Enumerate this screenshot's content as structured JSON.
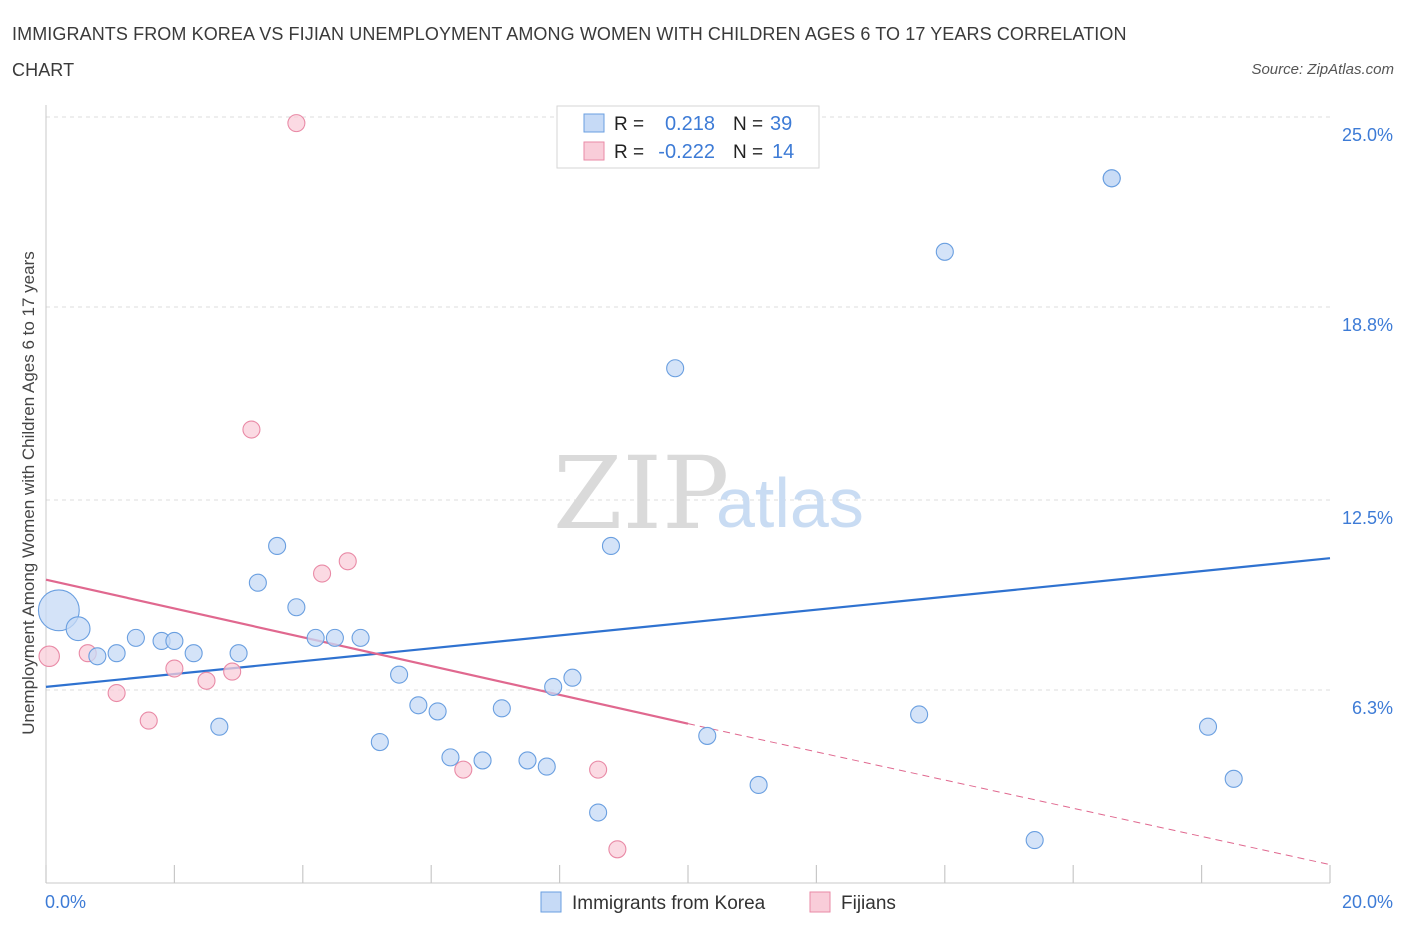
{
  "title": "IMMIGRANTS FROM KOREA VS FIJIAN UNEMPLOYMENT AMONG WOMEN WITH CHILDREN AGES 6 TO 17 YEARS CORRELATION CHART",
  "source": "Source: ZipAtlas.com",
  "watermark": {
    "zip": "ZIP",
    "atlas": "atlas"
  },
  "legend_box": [
    {
      "r_label": "R =",
      "r_value": "0.218",
      "n_label": "N =",
      "n_value": "39",
      "fill": "#c6daf6",
      "stroke": "#6a9fe0"
    },
    {
      "r_label": "R =",
      "r_value": "-0.222",
      "n_label": "N =",
      "n_value": "14",
      "fill": "#f9cdd9",
      "stroke": "#e98aa6"
    }
  ],
  "bottom_legend": [
    {
      "label": "Immigrants from Korea",
      "fill": "#c6daf6",
      "stroke": "#6a9fe0"
    },
    {
      "label": "Fijians",
      "fill": "#f9cdd9",
      "stroke": "#e98aa6"
    }
  ],
  "chart_data": {
    "type": "scatter",
    "title": "IMMIGRANTS FROM KOREA VS FIJIAN UNEMPLOYMENT AMONG WOMEN WITH CHILDREN AGES 6 TO 17 YEARS CORRELATION CHART",
    "xlabel": "",
    "ylabel": "Unemployment Among Women with Children Ages 6 to 17 years",
    "xlim": [
      0,
      20
    ],
    "ylim": [
      0,
      25
    ],
    "x_tick_labels": [
      "0.0%",
      "20.0%"
    ],
    "y_ticks": [
      6.3,
      12.5,
      18.8,
      25.0
    ],
    "y_tick_labels": [
      "6.3%",
      "12.5%",
      "18.8%",
      "25.0%"
    ],
    "grid": true,
    "legend_position": "top-center",
    "series": [
      {
        "name": "Immigrants from Korea",
        "color": "#6a9fe0",
        "fill": "#c6daf6",
        "trend": {
          "x": [
            0,
            20
          ],
          "y": [
            6.4,
            10.6
          ],
          "style": "solid",
          "color": "#2f72d0"
        },
        "points": [
          {
            "x": 0.2,
            "y": 8.9,
            "s": 2.4
          },
          {
            "x": 0.5,
            "y": 8.3,
            "s": 1.4
          },
          {
            "x": 0.8,
            "y": 7.4,
            "s": 1
          },
          {
            "x": 1.1,
            "y": 7.5,
            "s": 1
          },
          {
            "x": 1.4,
            "y": 8.0,
            "s": 1
          },
          {
            "x": 1.8,
            "y": 7.9,
            "s": 1
          },
          {
            "x": 2.0,
            "y": 7.9,
            "s": 1
          },
          {
            "x": 2.3,
            "y": 7.5,
            "s": 1
          },
          {
            "x": 2.7,
            "y": 5.1,
            "s": 1
          },
          {
            "x": 3.0,
            "y": 7.5,
            "s": 1
          },
          {
            "x": 3.3,
            "y": 9.8,
            "s": 1
          },
          {
            "x": 3.6,
            "y": 11.0,
            "s": 1
          },
          {
            "x": 3.9,
            "y": 9.0,
            "s": 1
          },
          {
            "x": 4.2,
            "y": 8.0,
            "s": 1
          },
          {
            "x": 4.5,
            "y": 8.0,
            "s": 1
          },
          {
            "x": 4.9,
            "y": 8.0,
            "s": 1
          },
          {
            "x": 5.2,
            "y": 4.6,
            "s": 1
          },
          {
            "x": 5.5,
            "y": 6.8,
            "s": 1
          },
          {
            "x": 5.8,
            "y": 5.8,
            "s": 1
          },
          {
            "x": 6.1,
            "y": 5.6,
            "s": 1
          },
          {
            "x": 6.3,
            "y": 4.1,
            "s": 1
          },
          {
            "x": 6.8,
            "y": 4.0,
            "s": 1
          },
          {
            "x": 7.1,
            "y": 5.7,
            "s": 1
          },
          {
            "x": 7.5,
            "y": 4.0,
            "s": 1
          },
          {
            "x": 7.8,
            "y": 3.8,
            "s": 1
          },
          {
            "x": 7.9,
            "y": 6.4,
            "s": 1
          },
          {
            "x": 8.2,
            "y": 6.7,
            "s": 1
          },
          {
            "x": 8.6,
            "y": 2.3,
            "s": 1
          },
          {
            "x": 8.8,
            "y": 11.0,
            "s": 1
          },
          {
            "x": 9.8,
            "y": 16.8,
            "s": 1
          },
          {
            "x": 10.3,
            "y": 4.8,
            "s": 1
          },
          {
            "x": 11.1,
            "y": 3.2,
            "s": 1
          },
          {
            "x": 13.6,
            "y": 5.5,
            "s": 1
          },
          {
            "x": 14.0,
            "y": 20.6,
            "s": 1
          },
          {
            "x": 15.4,
            "y": 1.4,
            "s": 1
          },
          {
            "x": 16.6,
            "y": 23.0,
            "s": 1
          },
          {
            "x": 16.6,
            "y": 23.0,
            "s": 1
          },
          {
            "x": 18.1,
            "y": 5.1,
            "s": 1
          },
          {
            "x": 18.5,
            "y": 3.4,
            "s": 1
          }
        ]
      },
      {
        "name": "Fijians",
        "color": "#e98aa6",
        "fill": "#f9cdd9",
        "trend": {
          "x": [
            0,
            10.0,
            20
          ],
          "y": [
            9.9,
            5.2,
            0.6
          ],
          "style": "solid-then-dashed",
          "color": "#e0688f"
        },
        "points": [
          {
            "x": 0.05,
            "y": 7.4,
            "s": 1.2
          },
          {
            "x": 0.65,
            "y": 7.5,
            "s": 1
          },
          {
            "x": 1.1,
            "y": 6.2,
            "s": 1
          },
          {
            "x": 1.6,
            "y": 5.3,
            "s": 1
          },
          {
            "x": 2.0,
            "y": 7.0,
            "s": 1
          },
          {
            "x": 2.5,
            "y": 6.6,
            "s": 1
          },
          {
            "x": 2.9,
            "y": 6.9,
            "s": 1
          },
          {
            "x": 3.2,
            "y": 14.8,
            "s": 1
          },
          {
            "x": 3.9,
            "y": 24.8,
            "s": 1
          },
          {
            "x": 4.3,
            "y": 10.1,
            "s": 1
          },
          {
            "x": 4.7,
            "y": 10.5,
            "s": 1
          },
          {
            "x": 6.5,
            "y": 3.7,
            "s": 1
          },
          {
            "x": 8.6,
            "y": 3.7,
            "s": 1
          },
          {
            "x": 8.9,
            "y": 1.1,
            "s": 1
          }
        ]
      }
    ]
  }
}
